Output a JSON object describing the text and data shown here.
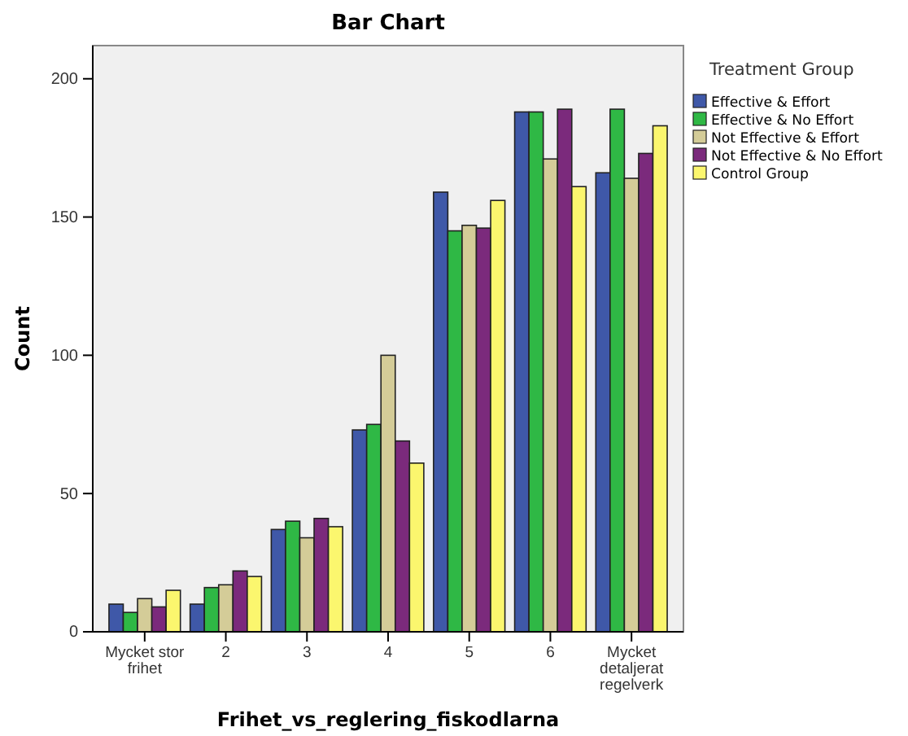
{
  "chart_data": {
    "type": "bar",
    "title": "Bar Chart",
    "xlabel": "Frihet_vs_reglering_fiskodlarna",
    "ylabel": "Count",
    "legend_title": "Treatment Group",
    "categories": [
      "Mycket stor frihet",
      "2",
      "3",
      "4",
      "5",
      "6",
      "Mycket detaljerat regelverk"
    ],
    "series": [
      {
        "name": "Effective & Effort",
        "color": "#3f58a8",
        "values": [
          10,
          10,
          37,
          73,
          159,
          188,
          166
        ]
      },
      {
        "name": "Effective & No Effort",
        "color": "#2fb845",
        "values": [
          7,
          16,
          40,
          75,
          145,
          188,
          189
        ]
      },
      {
        "name": "Not Effective & Effort",
        "color": "#d4cc98",
        "values": [
          12,
          17,
          34,
          100,
          147,
          171,
          164
        ]
      },
      {
        "name": "Not Effective & No Effort",
        "color": "#7b2a7c",
        "values": [
          9,
          22,
          41,
          69,
          146,
          189,
          173
        ]
      },
      {
        "name": "Control Group",
        "color": "#fbf66e",
        "values": [
          15,
          20,
          38,
          61,
          156,
          161,
          183
        ]
      }
    ],
    "ylim": [
      0,
      212
    ],
    "yticks": [
      0,
      50,
      100,
      150,
      200
    ],
    "grid": false,
    "legend": "right"
  }
}
